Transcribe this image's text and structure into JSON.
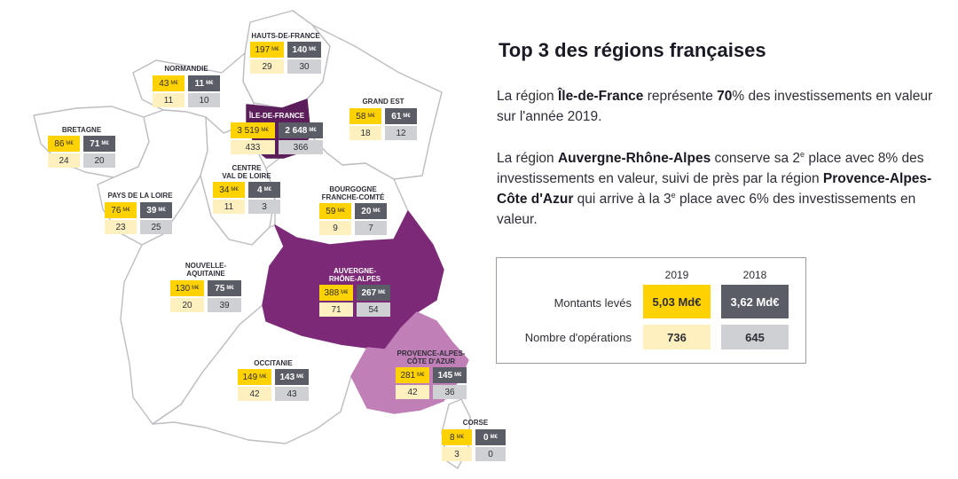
{
  "colors": {
    "amount_2019": "#ffd200",
    "amount_2018": "#5a5c66",
    "operations_2019": "#fff0bf",
    "operations_2018": "#cfd0d4",
    "ile_de_france": "#5b1e5a",
    "auvergne_rhone_alpes": "#7c2a78",
    "provence_alpes_cote_dazur": "#c17fb7",
    "region_outline": "#bdbdc2"
  },
  "unit_amount": "M€",
  "regions": [
    {
      "id": "hauts-de-france",
      "name": "HAUTS-DE-FRANCE",
      "amount_2019": "197",
      "amount_2018": "140",
      "ops_2019": "29",
      "ops_2018": "30"
    },
    {
      "id": "normandie",
      "name": "NORMANDIE",
      "amount_2019": "43",
      "amount_2018": "11",
      "ops_2019": "11",
      "ops_2018": "10"
    },
    {
      "id": "grand-est",
      "name": "GRAND EST",
      "amount_2019": "58",
      "amount_2018": "61",
      "ops_2019": "18",
      "ops_2018": "12"
    },
    {
      "id": "ile-de-france",
      "name": "ÎLE-DE-FRANCE",
      "amount_2019": "3 519",
      "amount_2018": "2 648",
      "ops_2019": "433",
      "ops_2018": "366"
    },
    {
      "id": "bretagne",
      "name": "BRETAGNE",
      "amount_2019": "86",
      "amount_2018": "71",
      "ops_2019": "24",
      "ops_2018": "20"
    },
    {
      "id": "centre-val-de-loire",
      "name": "CENTRE\nVAL DE LOIRE",
      "amount_2019": "34",
      "amount_2018": "4",
      "ops_2019": "11",
      "ops_2018": "3"
    },
    {
      "id": "pays-de-la-loire",
      "name": "PAYS DE LA LOIRE",
      "amount_2019": "76",
      "amount_2018": "39",
      "ops_2019": "23",
      "ops_2018": "25"
    },
    {
      "id": "bourgogne-franche-comte",
      "name": "BOURGOGNE\nFRANCHE-COMTÉ",
      "amount_2019": "59",
      "amount_2018": "20",
      "ops_2019": "9",
      "ops_2018": "7"
    },
    {
      "id": "auvergne-rhone-alpes",
      "name": "AUVERGNE-\nRHÔNE-ALPES",
      "amount_2019": "388",
      "amount_2018": "267",
      "ops_2019": "71",
      "ops_2018": "54"
    },
    {
      "id": "nouvelle-aquitaine",
      "name": "NOUVELLE-\nAQUITAINE",
      "amount_2019": "130",
      "amount_2018": "75",
      "ops_2019": "20",
      "ops_2018": "39"
    },
    {
      "id": "provence-alpes-cote-dazur",
      "name": "PROVENCE-ALPES-\nCÔTE D'AZUR",
      "amount_2019": "281",
      "amount_2018": "145",
      "ops_2019": "42",
      "ops_2018": "36"
    },
    {
      "id": "occitanie",
      "name": "OCCITANIE",
      "amount_2019": "149",
      "amount_2018": "143",
      "ops_2019": "42",
      "ops_2018": "43"
    },
    {
      "id": "corse",
      "name": "CORSE",
      "amount_2019": "8",
      "amount_2018": "0",
      "ops_2019": "3",
      "ops_2018": "0"
    }
  ],
  "panel": {
    "title": "Top 3 des régions françaises",
    "p1": {
      "t1": "La région ",
      "b1": "Île-de-France",
      "t2": " représente ",
      "b2": "70",
      "t3": "% des investissements en valeur sur l'année 2019."
    },
    "p2": {
      "t1": "La région ",
      "b1": "Auvergne-Rhône-Alpes",
      "t2": " conserve sa 2",
      "sup1": "e",
      "t3": " place avec 8% des investissements en valeur, suivi de près par la région ",
      "b2": "Provence-Alpes-Côte d'Azur",
      "t4": " qui arrive à la 3",
      "sup2": "e",
      "t5": " place avec 6% des investissements en valeur."
    }
  },
  "summary": {
    "year_2019": "2019",
    "year_2018": "2018",
    "row1_label": "Montants levés",
    "row1_2019": "5,03 Md€",
    "row1_2018": "3,62 Md€",
    "row2_label": "Nombre d'opérations",
    "row2_2019": "736",
    "row2_2018": "645"
  }
}
